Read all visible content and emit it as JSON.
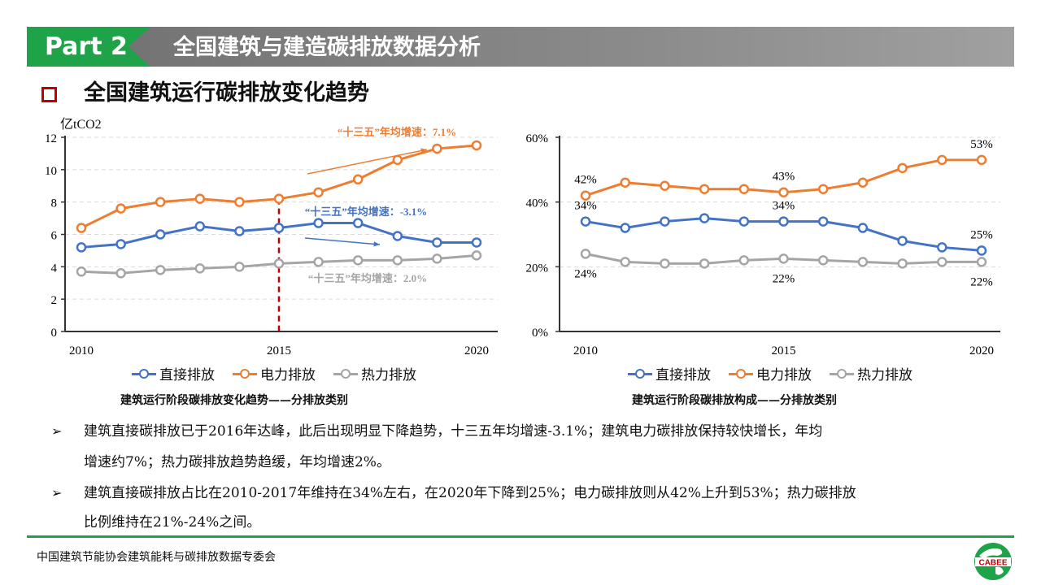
{
  "header": {
    "part_label": "Part 2",
    "title": "全国建筑与建造碳排放数据分析"
  },
  "section": {
    "title": "全国建筑运行碳排放变化趋势"
  },
  "colors": {
    "direct": "#4472C4",
    "power": "#ED7D31",
    "heat": "#A5A5A5",
    "brand_green": "#1FA348",
    "marker_red": "#C00000"
  },
  "legend": [
    "直接排放",
    "电力排放",
    "热力排放"
  ],
  "captions": {
    "left": "建筑运行阶段碳排放变化趋势——分排放类别",
    "right": "建筑运行阶段碳排放构成——分排放类别"
  },
  "chart_data": [
    {
      "type": "line",
      "ylabel": "亿tCO2",
      "ylim": [
        0,
        12
      ],
      "yticks": [
        "0",
        "2",
        "4",
        "6",
        "8",
        "10",
        "12"
      ],
      "x": [
        2010,
        2011,
        2012,
        2013,
        2014,
        2015,
        2016,
        2017,
        2018,
        2019,
        2020
      ],
      "xticks": [
        "2010",
        "2015",
        "2020"
      ],
      "grid": true,
      "legend": "bottom",
      "series": [
        {
          "name": "直接排放",
          "color": "#4472C4",
          "values": [
            5.2,
            5.4,
            6.0,
            6.5,
            6.2,
            6.4,
            6.7,
            6.7,
            5.9,
            5.5,
            5.5
          ]
        },
        {
          "name": "电力排放",
          "color": "#ED7D31",
          "values": [
            6.4,
            7.6,
            8.0,
            8.2,
            8.0,
            8.2,
            8.6,
            9.4,
            10.6,
            11.3,
            11.5
          ]
        },
        {
          "name": "热力排放",
          "color": "#A5A5A5",
          "values": [
            3.7,
            3.6,
            3.8,
            3.9,
            4.0,
            4.2,
            4.3,
            4.4,
            4.4,
            4.5,
            4.7
          ]
        }
      ],
      "reference_line": {
        "x": 2015,
        "color": "#C00000",
        "style": "dashed"
      },
      "annotations": [
        {
          "text": "“十三五”年均增速：7.1%",
          "color": "#ED7D31"
        },
        {
          "text": "“十三五”年均增速：-3.1%",
          "color": "#4472C4"
        },
        {
          "text": "“十三五”年均增速：2.0%",
          "color": "#A5A5A5"
        }
      ]
    },
    {
      "type": "line",
      "ylim": [
        0,
        60
      ],
      "yticks": [
        "0%",
        "20%",
        "40%",
        "60%"
      ],
      "x": [
        2010,
        2011,
        2012,
        2013,
        2014,
        2015,
        2016,
        2017,
        2018,
        2019,
        2020
      ],
      "xticks": [
        "2010",
        "2015",
        "2020"
      ],
      "grid": true,
      "legend": "bottom",
      "series": [
        {
          "name": "直接排放",
          "color": "#4472C4",
          "values": [
            34,
            32,
            34,
            35,
            34,
            34,
            34,
            32,
            28,
            26,
            25
          ],
          "labels": [
            {
              "x": 2010,
              "text": "34%"
            },
            {
              "x": 2015,
              "text": "34%"
            },
            {
              "x": 2020,
              "text": "25%"
            }
          ],
          "label_position": "above"
        },
        {
          "name": "电力排放",
          "color": "#ED7D31",
          "values": [
            42,
            46,
            45,
            44,
            44,
            43,
            44,
            46,
            50.5,
            53,
            53
          ],
          "labels": [
            {
              "x": 2010,
              "text": "42%"
            },
            {
              "x": 2015,
              "text": "43%"
            },
            {
              "x": 2020,
              "text": "53%"
            }
          ],
          "label_position": "above"
        },
        {
          "name": "热力排放",
          "color": "#A5A5A5",
          "values": [
            24,
            21.5,
            21,
            21,
            22,
            22.5,
            22,
            21.5,
            21,
            21.5,
            21.5
          ],
          "labels": [
            {
              "x": 2010,
              "text": "24%"
            },
            {
              "x": 2015,
              "text": "22%"
            },
            {
              "x": 2020,
              "text": "22%"
            }
          ],
          "label_position": "below"
        }
      ]
    }
  ],
  "bullets": [
    {
      "symbol": "➢",
      "lines": [
        "建筑直接碳排放已于2016年达峰，此后出现明显下降趋势，十三五年均增速-3.1%；建筑电力碳排放保持较快增长，年均",
        "增速约7%；热力碳排放趋势趋缓，年均增速2%。"
      ]
    },
    {
      "symbol": "➢",
      "lines": [
        "建筑直接碳排放占比在2010-2017年维持在34%左右，在2020年下降到25%；电力碳排放则从42%上升到53%；热力碳排放",
        "比例维持在21%-24%之间。"
      ]
    }
  ],
  "footer": {
    "text": "中国建筑节能协会建筑能耗与碳排放数据专委会",
    "logo_text": "CABEE"
  }
}
